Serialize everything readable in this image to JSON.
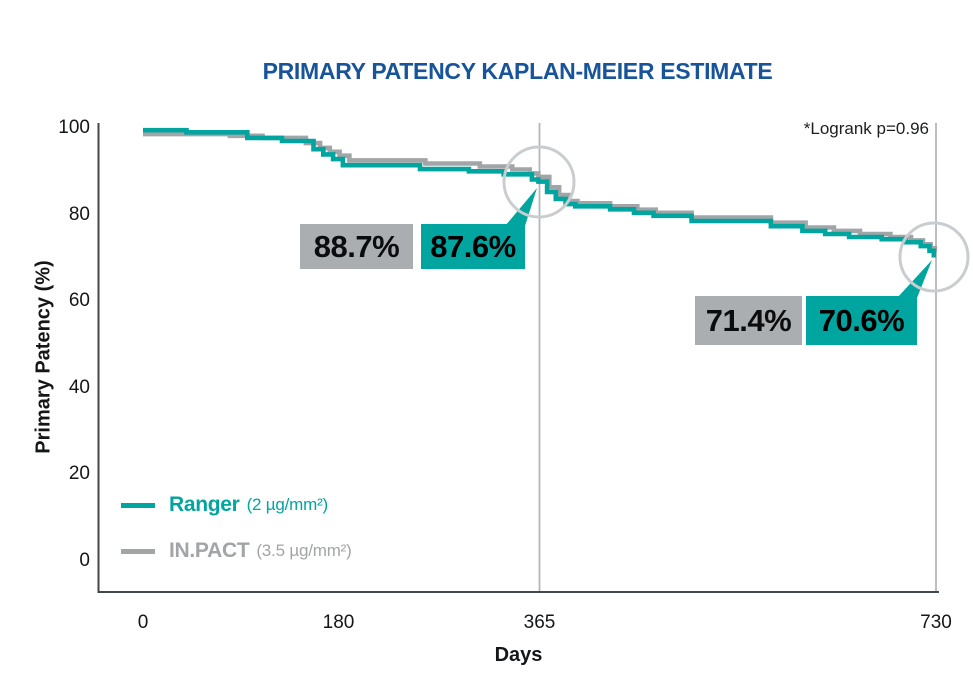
{
  "title": "PRIMARY PATENCY KAPLAN-MEIER ESTIMATE",
  "annotations": {
    "logrank": "*Logrank p=0.96"
  },
  "colors": {
    "title_blue": "#17549a",
    "ranger_teal": "#00a5a0",
    "inpact_gray": "#a2a5a8",
    "label_box_gray": "#abaeb0",
    "label_box_teal": "#00a5a0",
    "circle_highlight_gray": "#c9cdd0",
    "gridline_gray": "#b4b7b9",
    "axis_dark": "#42474b"
  },
  "legend": {
    "items": [
      {
        "id": "ranger",
        "name": "Ranger",
        "dose": "(2 µg/mm²)",
        "color": "#00a5a0"
      },
      {
        "id": "inpact",
        "name": "IN.PACT",
        "dose": "(3.5 µg/mm²)",
        "color": "#a2a5a8"
      }
    ]
  },
  "callouts": {
    "day365": {
      "inpact": "88.7%",
      "ranger": "87.6%"
    },
    "day730": {
      "inpact": "71.4%",
      "ranger": "70.6%"
    }
  },
  "chart_data": {
    "type": "line",
    "subtype": "kaplan-meier-step",
    "title": "PRIMARY PATENCY KAPLAN-MEIER ESTIMATE",
    "xlabel": "Days",
    "ylabel": "Primary Patency (%)",
    "xlim": [
      0,
      730
    ],
    "ylim": [
      0,
      100
    ],
    "x_ticks": [
      0,
      180,
      365,
      730
    ],
    "x_tick_labels": [
      "0",
      "180",
      "365",
      "730"
    ],
    "y_ticks": [
      0,
      20,
      40,
      60,
      80,
      100
    ],
    "y_tick_labels": [
      "0",
      "20",
      "40",
      "60",
      "80",
      "100"
    ],
    "gridlines_x": [
      365,
      730
    ],
    "grid": "vertical-only",
    "legend_position": "inside-bottom-left",
    "annotation": "*Logrank p=0.96",
    "highlight_days": [
      365,
      730
    ],
    "series": [
      {
        "id": "inpact",
        "name": "IN.PACT (3.5 µg/mm²)",
        "color": "#a2a5a8",
        "key_values": {
          "day365": 88.7,
          "day730": 71.4
        },
        "points": [
          [
            0,
            98.6
          ],
          [
            80,
            98.2
          ],
          [
            110,
            97.7
          ],
          [
            150,
            96.5
          ],
          [
            163,
            95.4
          ],
          [
            172,
            94.5
          ],
          [
            181,
            93.6
          ],
          [
            190,
            92.5
          ],
          [
            260,
            91.8
          ],
          [
            310,
            91.1
          ],
          [
            340,
            90.4
          ],
          [
            356,
            89.5
          ],
          [
            364,
            88.7
          ],
          [
            374,
            86.3
          ],
          [
            383,
            84.5
          ],
          [
            392,
            83.1
          ],
          [
            400,
            82.6
          ],
          [
            430,
            81.9
          ],
          [
            455,
            81.1
          ],
          [
            472,
            80.4
          ],
          [
            505,
            79.3
          ],
          [
            578,
            78.1
          ],
          [
            610,
            77.0
          ],
          [
            636,
            76.2
          ],
          [
            660,
            75.5
          ],
          [
            688,
            74.8
          ],
          [
            707,
            74.0
          ],
          [
            718,
            73.1
          ],
          [
            725,
            72.2
          ],
          [
            729,
            71.4
          ],
          [
            730,
            71.4
          ]
        ]
      },
      {
        "id": "ranger",
        "name": "Ranger (2 µg/mm²)",
        "color": "#00a5a0",
        "key_values": {
          "day365": 87.6,
          "day730": 70.6
        },
        "points": [
          [
            0,
            99.5
          ],
          [
            40,
            99.0
          ],
          [
            96,
            97.7
          ],
          [
            128,
            97.0
          ],
          [
            157,
            95.1
          ],
          [
            166,
            93.9
          ],
          [
            175,
            92.8
          ],
          [
            184,
            91.4
          ],
          [
            255,
            90.5
          ],
          [
            300,
            90.0
          ],
          [
            332,
            89.3
          ],
          [
            358,
            88.1
          ],
          [
            364,
            87.6
          ],
          [
            372,
            85.2
          ],
          [
            380,
            83.6
          ],
          [
            389,
            82.4
          ],
          [
            398,
            81.9
          ],
          [
            430,
            81.2
          ],
          [
            452,
            80.4
          ],
          [
            470,
            79.7
          ],
          [
            505,
            78.5
          ],
          [
            578,
            77.3
          ],
          [
            607,
            76.2
          ],
          [
            628,
            75.5
          ],
          [
            650,
            74.8
          ],
          [
            680,
            74.3
          ],
          [
            702,
            73.6
          ],
          [
            716,
            72.7
          ],
          [
            724,
            71.6
          ],
          [
            728,
            70.6
          ],
          [
            730,
            70.6
          ]
        ]
      }
    ]
  }
}
